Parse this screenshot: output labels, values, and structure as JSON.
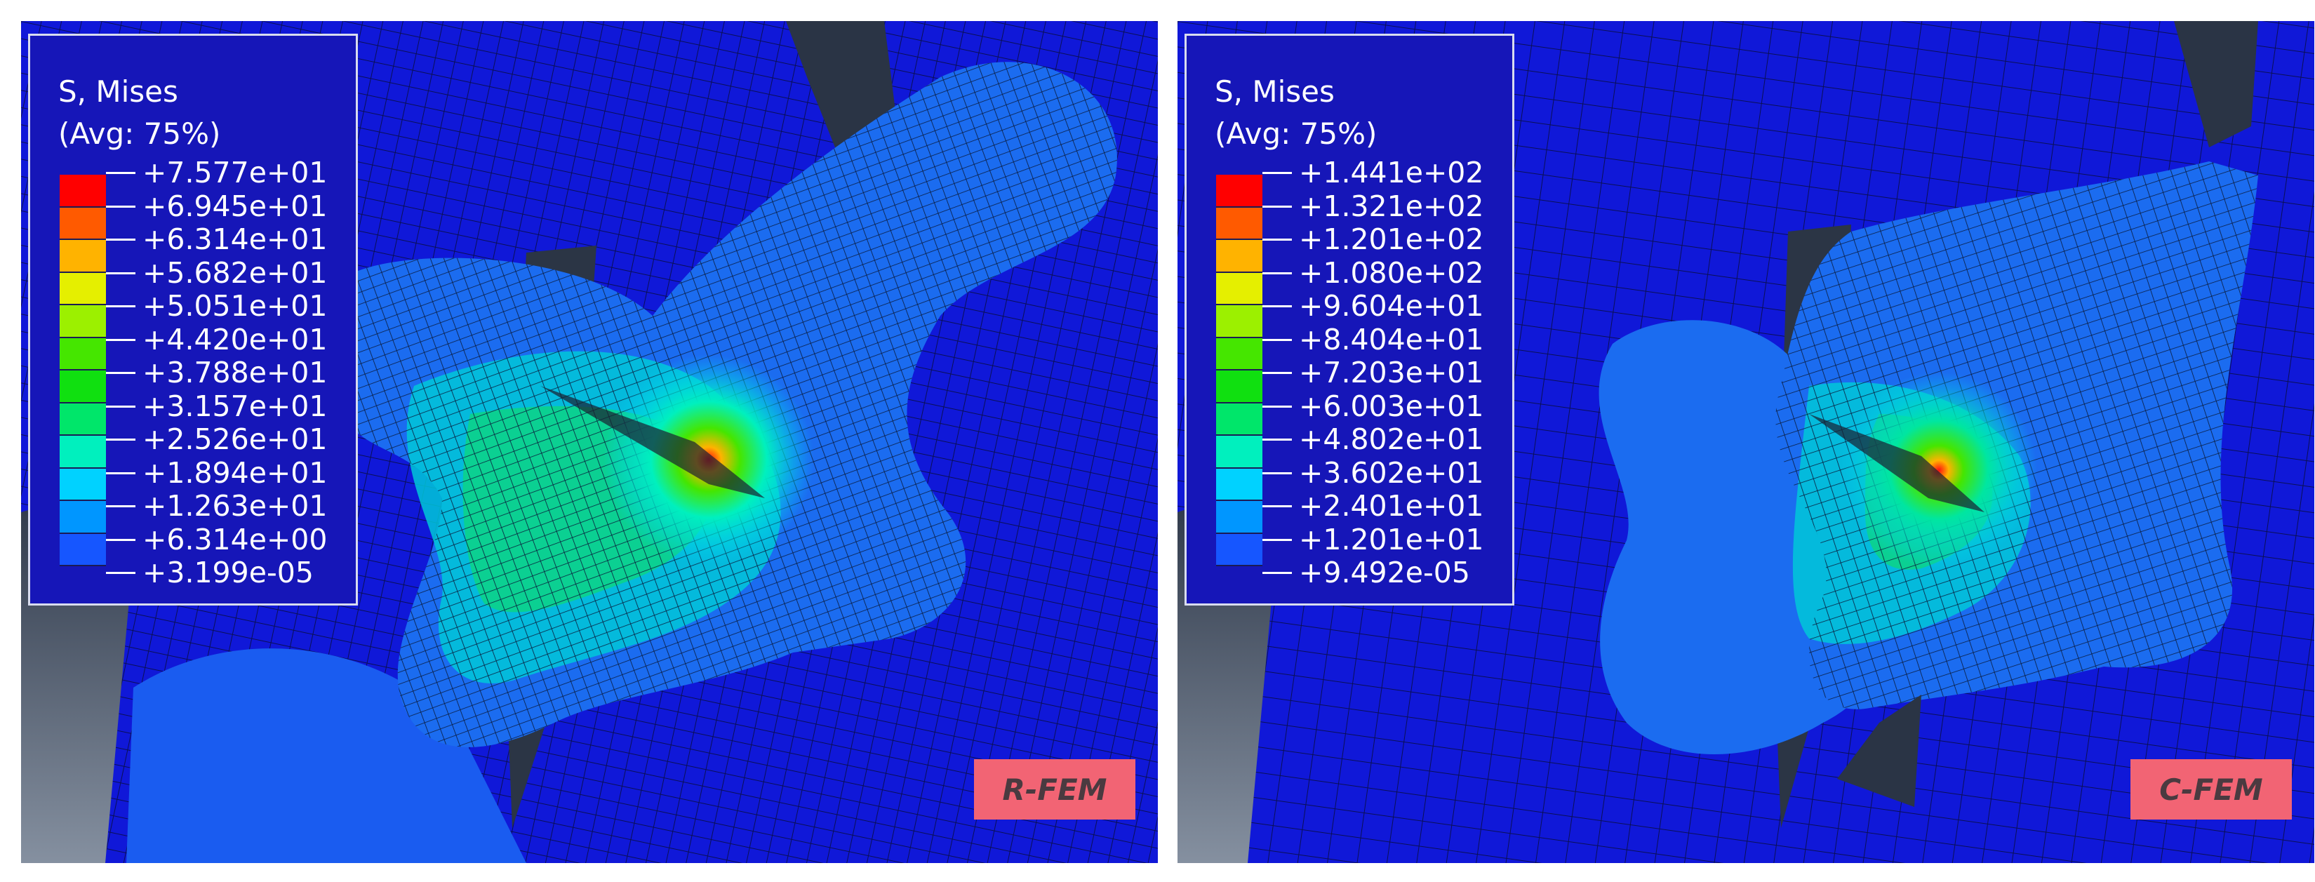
{
  "panels": [
    {
      "label": "R-FEM",
      "legend": {
        "title": "S, Mises",
        "subtitle": "(Avg: 75%)",
        "levels": [
          "+7.577e+01",
          "+6.945e+01",
          "+6.314e+01",
          "+5.682e+01",
          "+5.051e+01",
          "+4.420e+01",
          "+3.788e+01",
          "+3.157e+01",
          "+2.526e+01",
          "+1.894e+01",
          "+1.263e+01",
          "+6.314e+00",
          "+3.199e-05"
        ]
      }
    },
    {
      "label": "C-FEM",
      "legend": {
        "title": "S, Mises",
        "subtitle": "(Avg: 75%)",
        "levels": [
          "+1.441e+02",
          "+1.321e+02",
          "+1.201e+02",
          "+1.080e+02",
          "+9.604e+01",
          "+8.404e+01",
          "+7.203e+01",
          "+6.003e+01",
          "+4.802e+01",
          "+3.602e+01",
          "+2.401e+01",
          "+1.201e+01",
          "+9.492e-05"
        ]
      }
    }
  ],
  "colors": {
    "band_colors": [
      "#ff0000",
      "#ff5a00",
      "#ffb300",
      "#e5ef00",
      "#9cf000",
      "#45e600",
      "#10e010",
      "#00e66a",
      "#00f0be",
      "#00d2ff",
      "#0096ff",
      "#1656ff",
      "#0a14e6"
    ],
    "background_blue": "#1018d8",
    "label_badge": "#f26474",
    "legend_frame": "#d8dcef"
  }
}
